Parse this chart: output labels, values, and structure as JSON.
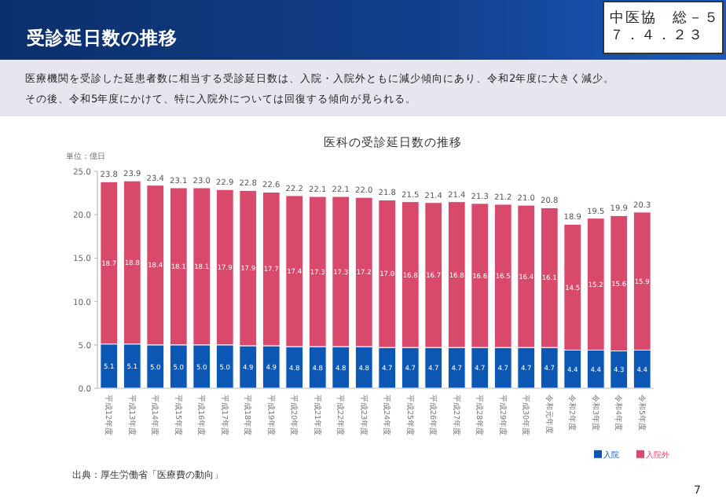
{
  "chart_data": {
    "type": "bar",
    "title": "受診延日数の推移",
    "subtitle": "医科の受診延日数の推移",
    "ylabel": "単位：億日",
    "categories": [
      "平成12年度",
      "平成13年度",
      "平成14年度",
      "平成15年度",
      "平成16年度",
      "平成17年度",
      "平成18年度",
      "平成19年度",
      "平成20年度",
      "平成21年度",
      "平成22年度",
      "平成23年度",
      "平成24年度",
      "平成25年度",
      "平成26年度",
      "平成27年度",
      "平成28年度",
      "平成29年度",
      "平成30年度",
      "令和元年度",
      "令和2年度",
      "令和3年度",
      "令和4年度",
      "令和5年度"
    ],
    "series": [
      {
        "name": "入院",
        "color": "#0c56b4",
        "values": [
          5.1,
          5.1,
          5.0,
          5.0,
          5.0,
          5.0,
          4.9,
          4.9,
          4.8,
          4.8,
          4.8,
          4.8,
          4.7,
          4.7,
          4.7,
          4.7,
          4.7,
          4.7,
          4.7,
          4.7,
          4.4,
          4.4,
          4.3,
          4.4
        ],
        "value_labels": [
          "5.1",
          "5.1",
          "5.0",
          "5.0",
          "5.0",
          "5.0",
          "4.9",
          "4.9",
          "4.8",
          "4.8",
          "4.8",
          "4.8",
          "4.7",
          "4.7",
          "4.7",
          "4.7",
          "4.7",
          "4.7",
          "4.7",
          "4.7",
          "4.4",
          "4.4",
          "4.3",
          "4.4"
        ]
      },
      {
        "name": "入院外",
        "color": "#d9496c",
        "values": [
          18.7,
          18.8,
          18.4,
          18.1,
          18.1,
          17.9,
          17.9,
          17.7,
          17.4,
          17.3,
          17.3,
          17.2,
          17.0,
          16.8,
          16.7,
          16.8,
          16.6,
          16.5,
          16.4,
          16.1,
          14.5,
          15.2,
          15.6,
          15.9
        ],
        "value_labels": [
          "18.7",
          "18.8",
          "18.4",
          "18.1",
          "18.1",
          "17.9",
          "17.9",
          "17.7",
          "17.4",
          "17.3",
          "17.3",
          "17.2",
          "17.0",
          "16.8",
          "16.7",
          "16.8",
          "16.6",
          "16.5",
          "16.4",
          "16.1",
          "14.5",
          "15.2",
          "15.6",
          "15.9"
        ]
      }
    ],
    "stacked": true,
    "totals": [
      "23.8",
      "23.9",
      "23.4",
      "23.1",
      "23.0",
      "22.9",
      "22.8",
      "22.6",
      "22.2",
      "22.1",
      "22.1",
      "22.0",
      "21.8",
      "21.5",
      "21.4",
      "21.4",
      "21.3",
      "21.2",
      "21.0",
      "20.8",
      "18.9",
      "19.5",
      "19.9",
      "20.3"
    ],
    "ylim": [
      0,
      25
    ],
    "yticks": [
      {
        "value": 0,
        "label": "0.0"
      },
      {
        "value": 5,
        "label": "5.0"
      },
      {
        "value": 10,
        "label": "10.0"
      },
      {
        "value": 15,
        "label": "15.0"
      },
      {
        "value": 20,
        "label": "20.0"
      },
      {
        "value": 25,
        "label": "25.0"
      }
    ],
    "legend": "bottom right",
    "annotations": [
      "医療機関を受診した延患者数に相当する受診延日数は、入院・入院外ともに減少傾向にあり、令和2年度に大きく減少。",
      "その後、令和5年度にかけて、特に入院外については回復する傾向が見られる。",
      "中医協　総－５",
      "７．４．２３",
      "出典：厚生労働省「医療費の動向」",
      "7"
    ]
  }
}
